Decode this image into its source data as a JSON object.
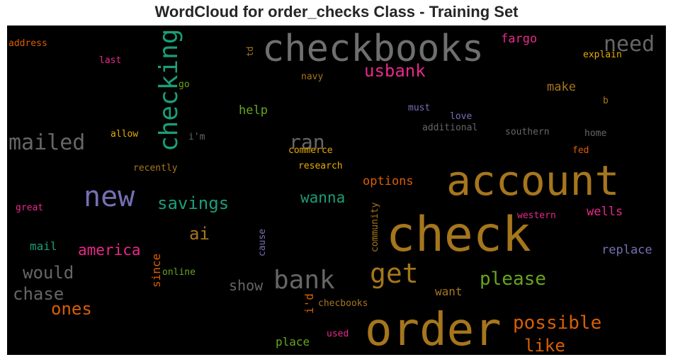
{
  "chart_data": {
    "type": "wordcloud",
    "title": "WordCloud for order_checks Class - Training Set",
    "background": "#000000",
    "words": [
      {
        "text": "checkbooks",
        "color": "#6f6f6f"
      },
      {
        "text": "account",
        "color": "#a6761d"
      },
      {
        "text": "check",
        "color": "#a6761d"
      },
      {
        "text": "order",
        "color": "#a6761d"
      },
      {
        "text": "new",
        "color": "#7570b3"
      },
      {
        "text": "checking",
        "color": "#1b9e77"
      },
      {
        "text": "bank",
        "color": "#666666"
      },
      {
        "text": "get",
        "color": "#a6761d"
      },
      {
        "text": "mailed",
        "color": "#666666"
      },
      {
        "text": "need",
        "color": "#666666"
      },
      {
        "text": "ran",
        "color": "#666666"
      },
      {
        "text": "usbank",
        "color": "#e7298a"
      },
      {
        "text": "savings",
        "color": "#1b9e77"
      },
      {
        "text": "please",
        "color": "#66a61e"
      },
      {
        "text": "possible",
        "color": "#d95f02"
      },
      {
        "text": "ones",
        "color": "#d95f02"
      },
      {
        "text": "would",
        "color": "#666666"
      },
      {
        "text": "chase",
        "color": "#666666"
      },
      {
        "text": "ai",
        "color": "#a6761d"
      },
      {
        "text": "america",
        "color": "#e7298a"
      },
      {
        "text": "like",
        "color": "#d95f02"
      },
      {
        "text": "wanna",
        "color": "#1b9e77"
      },
      {
        "text": "show",
        "color": "#666666"
      },
      {
        "text": "options",
        "color": "#d95f02"
      },
      {
        "text": "make",
        "color": "#a6761d"
      },
      {
        "text": "fargo",
        "color": "#e7298a"
      },
      {
        "text": "help",
        "color": "#66a61e"
      },
      {
        "text": "wells",
        "color": "#e7298a"
      },
      {
        "text": "replace",
        "color": "#7570b3"
      },
      {
        "text": "mail",
        "color": "#1b9e77"
      },
      {
        "text": "want",
        "color": "#a6761d"
      },
      {
        "text": "place",
        "color": "#66a61e"
      },
      {
        "text": "since",
        "color": "#d95f02"
      },
      {
        "text": "i'd",
        "color": "#d95f02"
      },
      {
        "text": "community",
        "color": "#a6761d"
      },
      {
        "text": "cause",
        "color": "#7570b3"
      },
      {
        "text": "td",
        "color": "#a6761d"
      },
      {
        "text": "address",
        "color": "#d95f02"
      },
      {
        "text": "last",
        "color": "#e7298a"
      },
      {
        "text": "navy",
        "color": "#a6761d"
      },
      {
        "text": "go",
        "color": "#66a61e"
      },
      {
        "text": "allow",
        "color": "#e6ab02"
      },
      {
        "text": "i'm",
        "color": "#666666"
      },
      {
        "text": "recently",
        "color": "#a6761d"
      },
      {
        "text": "great",
        "color": "#e7298a"
      },
      {
        "text": "online",
        "color": "#66a61e"
      },
      {
        "text": "commerce",
        "color": "#e6ab02"
      },
      {
        "text": "research",
        "color": "#e6ab02"
      },
      {
        "text": "checbooks",
        "color": "#a6761d"
      },
      {
        "text": "used",
        "color": "#e7298a"
      },
      {
        "text": "explain",
        "color": "#e6ab02"
      },
      {
        "text": "must",
        "color": "#7570b3"
      },
      {
        "text": "love",
        "color": "#7570b3"
      },
      {
        "text": "additional",
        "color": "#666666"
      },
      {
        "text": "southern",
        "color": "#666666"
      },
      {
        "text": "home",
        "color": "#666666"
      },
      {
        "text": "b",
        "color": "#a6761d"
      },
      {
        "text": "fed",
        "color": "#d95f02"
      },
      {
        "text": "western",
        "color": "#e7298a"
      }
    ]
  }
}
